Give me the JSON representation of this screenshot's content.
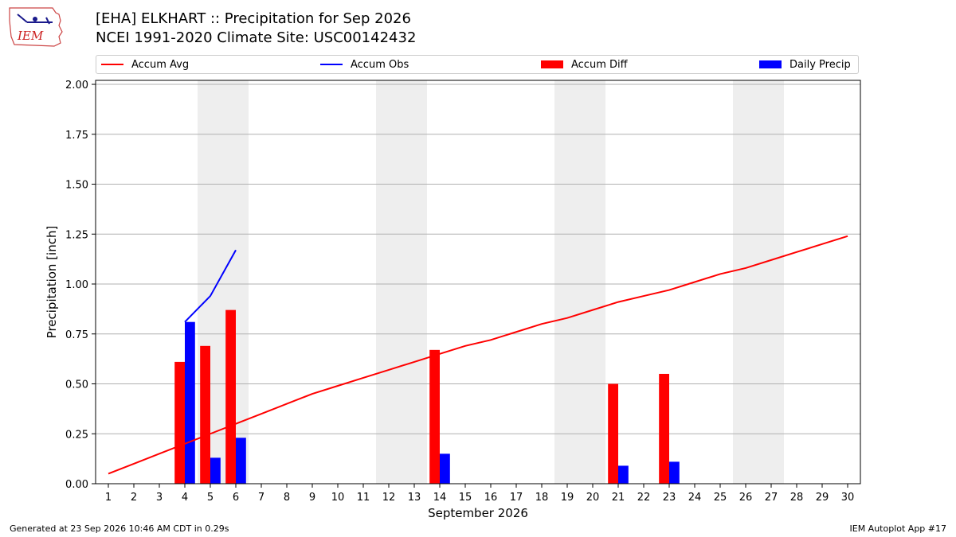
{
  "header": {
    "title_line1": "[EHA] ELKHART :: Precipitation for Sep 2026",
    "title_line2": "NCEI 1991-2020 Climate Site: USC00142432"
  },
  "logo": {
    "text": "IEM",
    "icon": "iem-logo-icon"
  },
  "legend": {
    "accum_avg": "Accum Avg",
    "accum_obs": "Accum Obs",
    "accum_diff": "Accum Diff",
    "daily_precip": "Daily Precip"
  },
  "footer": {
    "generated": "Generated at 23 Sep 2026 10:46 AM CDT in 0.29s",
    "app": "IEM Autoplot App #17"
  },
  "colors": {
    "accum_avg": "#ff0000",
    "accum_obs": "#0000ff",
    "accum_diff": "#ff0000",
    "daily_precip": "#0000ff",
    "weekend_shade": "#eeeeee",
    "grid": "#b0b0b0"
  },
  "chart_data": {
    "type": "bar",
    "xlabel": "September 2026",
    "ylabel": "Precipitation [inch]",
    "xlim": [
      0.5,
      30.5
    ],
    "ylim": [
      0,
      2.02
    ],
    "x_ticks": [
      1,
      2,
      3,
      4,
      5,
      6,
      7,
      8,
      9,
      10,
      11,
      12,
      13,
      14,
      15,
      16,
      17,
      18,
      19,
      20,
      21,
      22,
      23,
      24,
      25,
      26,
      27,
      28,
      29,
      30
    ],
    "y_ticks": [
      0.0,
      0.25,
      0.5,
      0.75,
      1.0,
      1.25,
      1.5,
      1.75,
      2.0
    ],
    "y_tick_labels": [
      "0.00",
      "0.25",
      "0.50",
      "0.75",
      "1.00",
      "1.25",
      "1.50",
      "1.75",
      "2.00"
    ],
    "grid": "horizontal",
    "legend_position": "top",
    "weekend_days": [
      5,
      6,
      12,
      13,
      19,
      20,
      26,
      27
    ],
    "accum_avg": {
      "days": [
        1,
        2,
        3,
        4,
        5,
        6,
        7,
        8,
        9,
        10,
        11,
        12,
        13,
        14,
        15,
        16,
        17,
        18,
        19,
        20,
        21,
        22,
        23,
        24,
        25,
        26,
        27,
        28,
        29,
        30
      ],
      "values": [
        0.05,
        0.1,
        0.15,
        0.2,
        0.25,
        0.3,
        0.35,
        0.4,
        0.45,
        0.49,
        0.53,
        0.57,
        0.61,
        0.65,
        0.69,
        0.72,
        0.76,
        0.8,
        0.83,
        0.87,
        0.91,
        0.94,
        0.97,
        1.01,
        1.05,
        1.08,
        1.12,
        1.16,
        1.2,
        1.24
      ]
    },
    "accum_obs": {
      "days": [
        4,
        5,
        6
      ],
      "values": [
        0.81,
        0.94,
        1.17
      ]
    },
    "accum_diff": {
      "days": [
        4,
        5,
        6,
        14,
        21,
        23
      ],
      "values": [
        0.61,
        0.69,
        0.87,
        0.67,
        0.5,
        0.55
      ]
    },
    "daily_precip": {
      "days": [
        4,
        5,
        6,
        14,
        21,
        23
      ],
      "values": [
        0.81,
        0.13,
        0.23,
        0.15,
        0.09,
        0.11
      ]
    }
  }
}
